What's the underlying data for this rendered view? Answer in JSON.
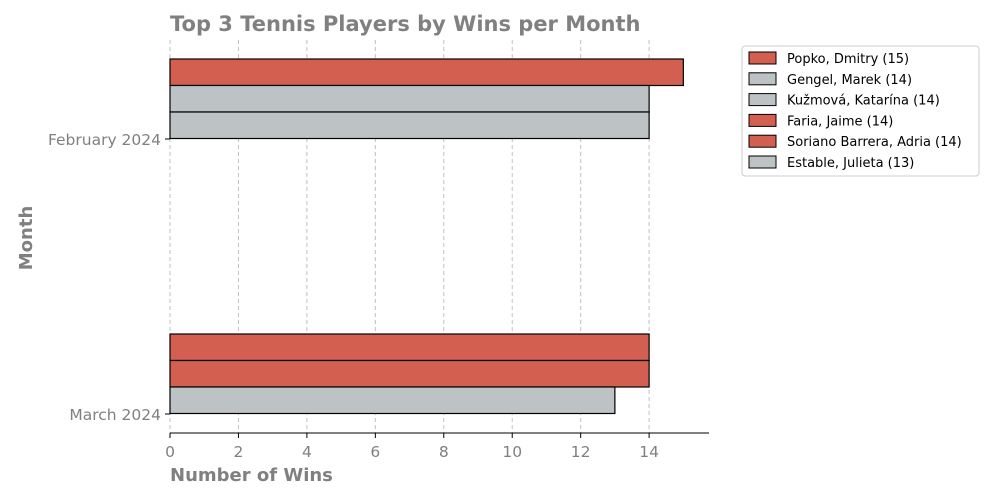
{
  "chart_data": {
    "type": "bar",
    "orientation": "horizontal",
    "title": "Top 3 Tennis Players by Wins per Month",
    "xlabel": "Number of Wins",
    "ylabel": "Month",
    "xlim": [
      0,
      15.75
    ],
    "xticks": [
      "0",
      "2",
      "4",
      "6",
      "8",
      "10",
      "12",
      "14"
    ],
    "grid": "vertical-dashed",
    "legend_position": "outside-top-right",
    "colors": {
      "highlight": "#d35f50",
      "neutral": "#bdc3c5",
      "edge": "#000000",
      "grid": "#c0c0c0",
      "text": "#808080"
    },
    "categories": [
      "February 2024",
      "March 2024"
    ],
    "groups": [
      {
        "month": "February 2024",
        "bars": [
          {
            "player": "Popko, Dmitry",
            "value": 15,
            "highlight": true
          },
          {
            "player": "Gengel, Marek",
            "value": 14,
            "highlight": false
          },
          {
            "player": "Kužmová, Katarína",
            "value": 14,
            "highlight": false
          }
        ]
      },
      {
        "month": "March 2024",
        "bars": [
          {
            "player": "Faria, Jaime",
            "value": 14,
            "highlight": true
          },
          {
            "player": "Soriano Barrera, Adria",
            "value": 14,
            "highlight": true
          },
          {
            "player": "Estable, Julieta",
            "value": 13,
            "highlight": false
          }
        ]
      }
    ],
    "legend": [
      {
        "label": "Popko, Dmitry (15)",
        "highlight": true
      },
      {
        "label": "Gengel, Marek (14)",
        "highlight": false
      },
      {
        "label": "Kužmová, Katarína (14)",
        "highlight": false
      },
      {
        "label": "Faria, Jaime (14)",
        "highlight": true
      },
      {
        "label": "Soriano Barrera, Adria (14)",
        "highlight": true
      },
      {
        "label": "Estable, Julieta (13)",
        "highlight": false
      }
    ]
  }
}
